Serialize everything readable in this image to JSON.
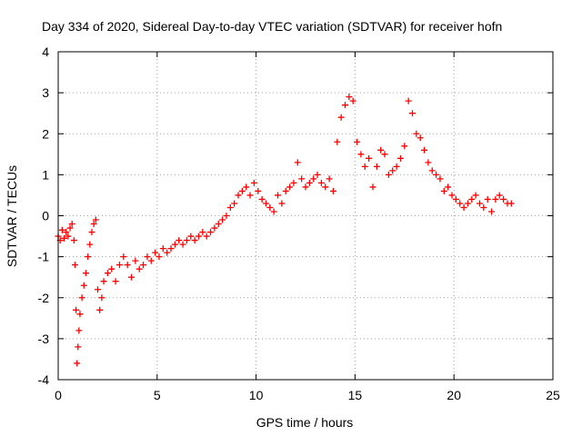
{
  "chart_data": {
    "type": "scatter",
    "title": "Day 334 of 2020, Sidereal Day-to-day VTEC variation (SDTVAR) for receiver hofn",
    "xlabel": "GPS time / hours",
    "ylabel": "SDTVAR / TECUs",
    "xlim": [
      0,
      25
    ],
    "ylim": [
      -4,
      4
    ],
    "x_ticks": [
      0,
      5,
      10,
      15,
      20,
      25
    ],
    "x_tick_labels": [
      "0",
      "5",
      "10",
      "15",
      "20",
      "25"
    ],
    "y_ticks": [
      -4,
      -3,
      -2,
      -1,
      0,
      1,
      2,
      3,
      4
    ],
    "y_tick_labels": [
      "-4",
      "-3",
      "-2",
      "-1",
      "0",
      "1",
      "2",
      "3",
      "4"
    ],
    "grid": true,
    "marker": "+",
    "series_color": "#ff0000",
    "series": [
      {
        "name": "SDTVAR",
        "x": [
          0.0,
          0.1,
          0.2,
          0.3,
          0.4,
          0.5,
          0.6,
          0.7,
          0.8,
          0.85,
          0.9,
          0.95,
          1.0,
          1.05,
          1.1,
          1.2,
          1.3,
          1.4,
          1.5,
          1.6,
          1.7,
          1.8,
          1.9,
          2.0,
          2.1,
          2.2,
          2.3,
          2.5,
          2.7,
          2.9,
          3.1,
          3.3,
          3.5,
          3.7,
          3.9,
          4.1,
          4.3,
          4.5,
          4.7,
          4.9,
          5.1,
          5.3,
          5.5,
          5.7,
          5.9,
          6.1,
          6.3,
          6.5,
          6.7,
          6.9,
          7.1,
          7.3,
          7.5,
          7.7,
          7.9,
          8.1,
          8.3,
          8.5,
          8.7,
          8.9,
          9.1,
          9.3,
          9.5,
          9.7,
          9.9,
          10.1,
          10.3,
          10.5,
          10.7,
          10.9,
          11.1,
          11.3,
          11.5,
          11.7,
          11.9,
          12.1,
          12.3,
          12.5,
          12.7,
          12.9,
          13.1,
          13.3,
          13.5,
          13.7,
          13.9,
          14.1,
          14.3,
          14.5,
          14.7,
          14.9,
          15.1,
          15.3,
          15.5,
          15.7,
          15.9,
          16.1,
          16.3,
          16.5,
          16.7,
          16.9,
          17.1,
          17.3,
          17.5,
          17.7,
          17.9,
          18.1,
          18.3,
          18.5,
          18.7,
          18.9,
          19.1,
          19.3,
          19.5,
          19.7,
          19.9,
          20.1,
          20.3,
          20.5,
          20.7,
          20.9,
          21.1,
          21.3,
          21.5,
          21.7,
          21.9,
          22.1,
          22.3,
          22.5,
          22.7,
          22.9
        ],
        "y": [
          -0.5,
          -0.6,
          -0.35,
          -0.55,
          -0.4,
          -0.5,
          -0.3,
          -0.2,
          -0.6,
          -1.2,
          -2.3,
          -3.6,
          -3.2,
          -2.8,
          -2.4,
          -2.0,
          -1.7,
          -1.4,
          -1.0,
          -0.7,
          -0.4,
          -0.2,
          -0.1,
          -1.8,
          -2.3,
          -2.0,
          -1.6,
          -1.4,
          -1.3,
          -1.6,
          -1.2,
          -1.0,
          -1.2,
          -1.5,
          -1.1,
          -1.3,
          -1.2,
          -1.0,
          -1.1,
          -0.9,
          -1.0,
          -0.8,
          -0.9,
          -0.8,
          -0.7,
          -0.6,
          -0.7,
          -0.6,
          -0.5,
          -0.6,
          -0.5,
          -0.4,
          -0.5,
          -0.4,
          -0.3,
          -0.2,
          -0.1,
          0.0,
          0.2,
          0.3,
          0.5,
          0.6,
          0.7,
          0.5,
          0.8,
          0.6,
          0.4,
          0.3,
          0.2,
          0.1,
          0.5,
          0.3,
          0.6,
          0.7,
          0.8,
          1.3,
          0.9,
          0.7,
          0.8,
          0.9,
          1.0,
          0.8,
          0.7,
          0.9,
          0.6,
          1.8,
          2.4,
          2.7,
          2.9,
          2.8,
          1.8,
          1.5,
          1.2,
          1.4,
          0.7,
          1.2,
          1.6,
          1.5,
          1.0,
          1.1,
          1.2,
          1.4,
          1.7,
          2.8,
          2.5,
          2.0,
          1.9,
          1.6,
          1.3,
          1.1,
          1.0,
          0.9,
          0.6,
          0.7,
          0.5,
          0.4,
          0.3,
          0.2,
          0.3,
          0.4,
          0.5,
          0.3,
          0.2,
          0.4,
          0.1,
          0.4,
          0.5,
          0.4,
          0.3,
          0.3
        ]
      }
    ]
  }
}
